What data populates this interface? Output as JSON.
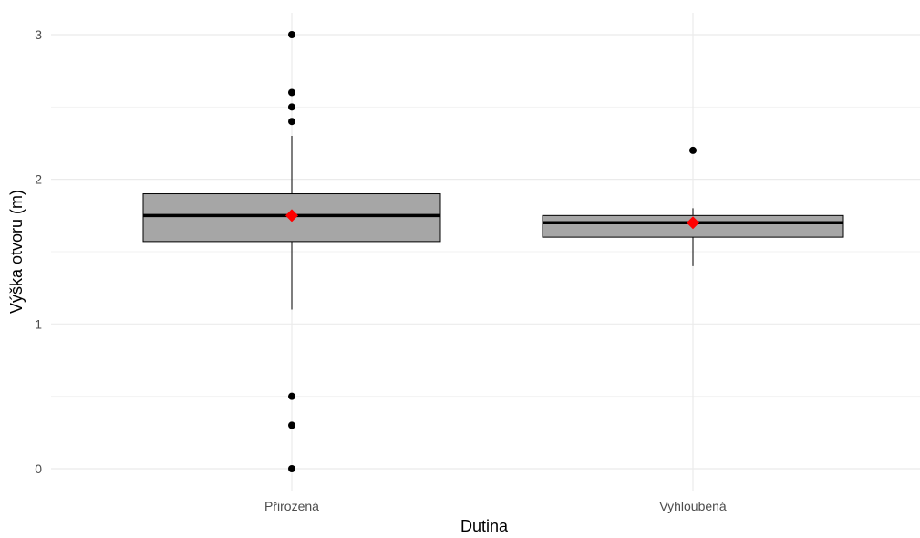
{
  "chart_data": {
    "type": "boxplot",
    "title": "",
    "xlabel": "Dutina",
    "ylabel": "Výška otvoru (m)",
    "ylim": [
      -0.15,
      3.15
    ],
    "yticks": [
      0,
      1,
      2,
      3
    ],
    "ytick_labels": [
      "0",
      "1",
      "2",
      "3"
    ],
    "grid": true,
    "categories": [
      "Přirozená",
      "Vyhloubená"
    ],
    "boxes": [
      {
        "category": "Přirozená",
        "q1": 1.57,
        "median": 1.75,
        "q3": 1.9,
        "whisker_low": 1.1,
        "whisker_high": 2.3,
        "mean": 1.75,
        "outliers": [
          3.0,
          2.6,
          2.5,
          2.4,
          0.5,
          0.3,
          0.0
        ]
      },
      {
        "category": "Vyhloubená",
        "q1": 1.6,
        "median": 1.7,
        "q3": 1.75,
        "whisker_low": 1.4,
        "whisker_high": 1.8,
        "mean": 1.7,
        "outliers": [
          2.2
        ]
      }
    ],
    "colors": {
      "box_fill": "#a6a6a6",
      "box_stroke": "#000000",
      "outlier": "#000000",
      "mean_marker": "#ff0000",
      "grid_major": "#ebebeb",
      "grid_minor": "#f2f2f2"
    }
  }
}
